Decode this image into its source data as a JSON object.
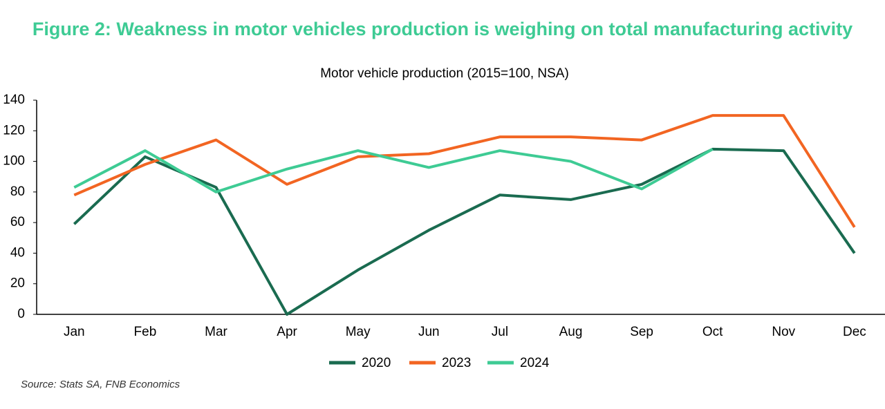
{
  "chart_data": {
    "type": "line",
    "title": "Figure 2: Weakness in motor vehicles production is weighing on total manufacturing activity",
    "subtitle": "Motor vehicle production (2015=100, NSA)",
    "source": "Source: Stats SA, FNB Economics",
    "categories": [
      "Jan",
      "Feb",
      "Mar",
      "Apr",
      "May",
      "Jun",
      "Jul",
      "Aug",
      "Sep",
      "Oct",
      "Nov",
      "Dec"
    ],
    "series": [
      {
        "name": "2020",
        "color": "#1a6b50",
        "values": [
          59,
          103,
          83,
          0,
          29,
          55,
          78,
          75,
          85,
          108,
          107,
          40
        ]
      },
      {
        "name": "2023",
        "color": "#f26522",
        "values": [
          78,
          98,
          114,
          85,
          103,
          105,
          116,
          116,
          114,
          130,
          130,
          57
        ]
      },
      {
        "name": "2024",
        "color": "#3ecb94",
        "values": [
          83,
          107,
          80,
          95,
          107,
          96,
          107,
          100,
          82,
          108,
          null,
          null
        ]
      }
    ],
    "ylim": [
      0,
      140
    ],
    "yticks": [
      0,
      20,
      40,
      60,
      80,
      100,
      120,
      140
    ],
    "grid": false,
    "legend": "bottom"
  }
}
